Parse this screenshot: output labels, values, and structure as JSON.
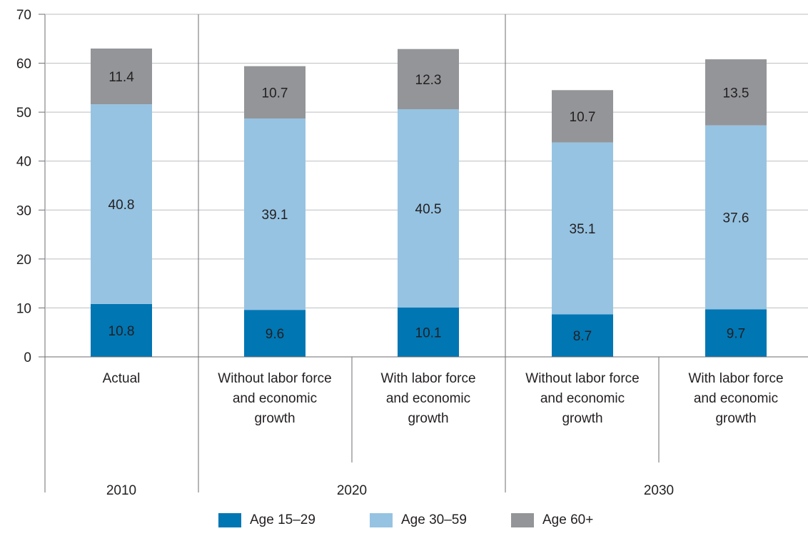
{
  "chart_data": {
    "type": "bar",
    "stacked": true,
    "categories": [
      "Actual",
      "Without labor force and economic growth",
      "With labor force and economic growth",
      "Without labor force and economic growth",
      "With labor force and economic growth"
    ],
    "category_lines": [
      [
        "Actual"
      ],
      [
        "Without labor force",
        "and economic",
        "growth"
      ],
      [
        "With labor force",
        "and economic",
        "growth"
      ],
      [
        "Without labor force",
        "and economic",
        "growth"
      ],
      [
        "With labor force",
        "and economic",
        "growth"
      ]
    ],
    "groups": [
      {
        "label": "2010",
        "categories": [
          0
        ]
      },
      {
        "label": "2020",
        "categories": [
          1,
          2
        ]
      },
      {
        "label": "2030",
        "categories": [
          3,
          4
        ]
      }
    ],
    "series": [
      {
        "name": "Age 15–29",
        "color": "#0076b3",
        "label_color": "#ffffff",
        "values": [
          10.8,
          9.6,
          10.1,
          8.7,
          9.7
        ]
      },
      {
        "name": "Age 30–59",
        "color": "#96c3e2",
        "label_color": "#231f20",
        "values": [
          40.8,
          39.1,
          40.5,
          35.1,
          37.6
        ]
      },
      {
        "name": "Age 60+",
        "color": "#939598",
        "label_color": "#231f20",
        "values": [
          11.4,
          10.7,
          12.3,
          10.7,
          13.5
        ]
      }
    ],
    "ylim": [
      0,
      70
    ],
    "yticks": [
      0,
      10,
      20,
      30,
      40,
      50,
      60,
      70
    ],
    "grid": true,
    "legend_position": "bottom",
    "title": "",
    "xlabel": "",
    "ylabel": ""
  }
}
